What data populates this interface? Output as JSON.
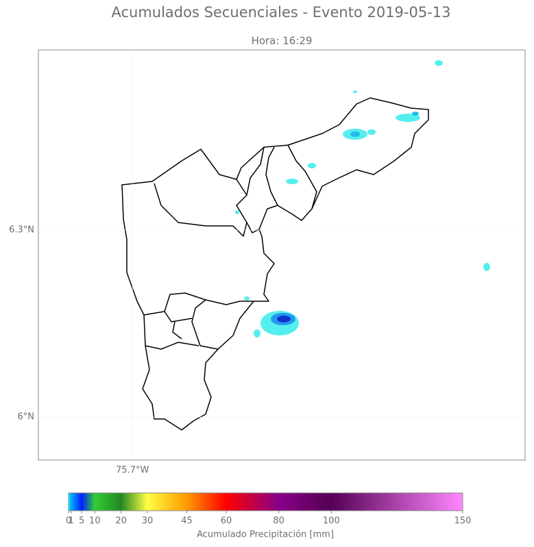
{
  "title": "Acumulados Secuenciales - Evento 2019-05-13",
  "subtitle": "Hora: 16:29",
  "map": {
    "xlim": [
      -75.851,
      -75.07
    ],
    "ylim": [
      5.931,
      6.589
    ],
    "yticks": [
      {
        "value": 6.3,
        "label": "6.3°N"
      },
      {
        "value": 6,
        "label": "6°N"
      }
    ],
    "xticks": [
      {
        "value": -75.7,
        "label": "75.7°W"
      }
    ]
  },
  "colorbar": {
    "label": "Acumulado Precipitación [mm]",
    "lim": [
      0,
      150
    ],
    "ticks": [
      0,
      1,
      5,
      10,
      20,
      30,
      45,
      60,
      80,
      100,
      150
    ],
    "colors": [
      "#00ffff",
      "#00aaff",
      "#0022ff",
      "#33cc33",
      "#228822",
      "#ffff44",
      "#ff9900",
      "#ff0000",
      "#880088",
      "#550055",
      "#ff88ff"
    ]
  }
}
